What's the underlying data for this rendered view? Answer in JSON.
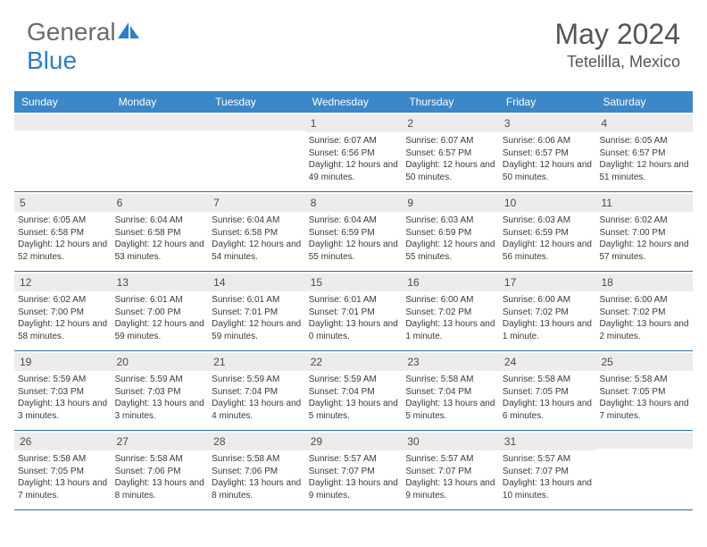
{
  "logo": {
    "text1": "General",
    "text2": "Blue"
  },
  "title": "May 2024",
  "location": "Tetelilla, Mexico",
  "colors": {
    "header_bg": "#3b87c8",
    "header_text": "#ffffff",
    "daynum_bg": "#ececec",
    "text": "#3a3a3a",
    "title_text": "#555555",
    "divider": "#2d6fa8"
  },
  "day_names": [
    "Sunday",
    "Monday",
    "Tuesday",
    "Wednesday",
    "Thursday",
    "Friday",
    "Saturday"
  ],
  "weeks": [
    [
      {
        "n": "",
        "empty": true
      },
      {
        "n": "",
        "empty": true
      },
      {
        "n": "",
        "empty": true
      },
      {
        "n": "1",
        "sunrise": "Sunrise: 6:07 AM",
        "sunset": "Sunset: 6:56 PM",
        "daylight": "Daylight: 12 hours and 49 minutes."
      },
      {
        "n": "2",
        "sunrise": "Sunrise: 6:07 AM",
        "sunset": "Sunset: 6:57 PM",
        "daylight": "Daylight: 12 hours and 50 minutes."
      },
      {
        "n": "3",
        "sunrise": "Sunrise: 6:06 AM",
        "sunset": "Sunset: 6:57 PM",
        "daylight": "Daylight: 12 hours and 50 minutes."
      },
      {
        "n": "4",
        "sunrise": "Sunrise: 6:05 AM",
        "sunset": "Sunset: 6:57 PM",
        "daylight": "Daylight: 12 hours and 51 minutes."
      }
    ],
    [
      {
        "n": "5",
        "sunrise": "Sunrise: 6:05 AM",
        "sunset": "Sunset: 6:58 PM",
        "daylight": "Daylight: 12 hours and 52 minutes."
      },
      {
        "n": "6",
        "sunrise": "Sunrise: 6:04 AM",
        "sunset": "Sunset: 6:58 PM",
        "daylight": "Daylight: 12 hours and 53 minutes."
      },
      {
        "n": "7",
        "sunrise": "Sunrise: 6:04 AM",
        "sunset": "Sunset: 6:58 PM",
        "daylight": "Daylight: 12 hours and 54 minutes."
      },
      {
        "n": "8",
        "sunrise": "Sunrise: 6:04 AM",
        "sunset": "Sunset: 6:59 PM",
        "daylight": "Daylight: 12 hours and 55 minutes."
      },
      {
        "n": "9",
        "sunrise": "Sunrise: 6:03 AM",
        "sunset": "Sunset: 6:59 PM",
        "daylight": "Daylight: 12 hours and 55 minutes."
      },
      {
        "n": "10",
        "sunrise": "Sunrise: 6:03 AM",
        "sunset": "Sunset: 6:59 PM",
        "daylight": "Daylight: 12 hours and 56 minutes."
      },
      {
        "n": "11",
        "sunrise": "Sunrise: 6:02 AM",
        "sunset": "Sunset: 7:00 PM",
        "daylight": "Daylight: 12 hours and 57 minutes."
      }
    ],
    [
      {
        "n": "12",
        "sunrise": "Sunrise: 6:02 AM",
        "sunset": "Sunset: 7:00 PM",
        "daylight": "Daylight: 12 hours and 58 minutes."
      },
      {
        "n": "13",
        "sunrise": "Sunrise: 6:01 AM",
        "sunset": "Sunset: 7:00 PM",
        "daylight": "Daylight: 12 hours and 59 minutes."
      },
      {
        "n": "14",
        "sunrise": "Sunrise: 6:01 AM",
        "sunset": "Sunset: 7:01 PM",
        "daylight": "Daylight: 12 hours and 59 minutes."
      },
      {
        "n": "15",
        "sunrise": "Sunrise: 6:01 AM",
        "sunset": "Sunset: 7:01 PM",
        "daylight": "Daylight: 13 hours and 0 minutes."
      },
      {
        "n": "16",
        "sunrise": "Sunrise: 6:00 AM",
        "sunset": "Sunset: 7:02 PM",
        "daylight": "Daylight: 13 hours and 1 minute."
      },
      {
        "n": "17",
        "sunrise": "Sunrise: 6:00 AM",
        "sunset": "Sunset: 7:02 PM",
        "daylight": "Daylight: 13 hours and 1 minute."
      },
      {
        "n": "18",
        "sunrise": "Sunrise: 6:00 AM",
        "sunset": "Sunset: 7:02 PM",
        "daylight": "Daylight: 13 hours and 2 minutes."
      }
    ],
    [
      {
        "n": "19",
        "sunrise": "Sunrise: 5:59 AM",
        "sunset": "Sunset: 7:03 PM",
        "daylight": "Daylight: 13 hours and 3 minutes."
      },
      {
        "n": "20",
        "sunrise": "Sunrise: 5:59 AM",
        "sunset": "Sunset: 7:03 PM",
        "daylight": "Daylight: 13 hours and 3 minutes."
      },
      {
        "n": "21",
        "sunrise": "Sunrise: 5:59 AM",
        "sunset": "Sunset: 7:04 PM",
        "daylight": "Daylight: 13 hours and 4 minutes."
      },
      {
        "n": "22",
        "sunrise": "Sunrise: 5:59 AM",
        "sunset": "Sunset: 7:04 PM",
        "daylight": "Daylight: 13 hours and 5 minutes."
      },
      {
        "n": "23",
        "sunrise": "Sunrise: 5:58 AM",
        "sunset": "Sunset: 7:04 PM",
        "daylight": "Daylight: 13 hours and 5 minutes."
      },
      {
        "n": "24",
        "sunrise": "Sunrise: 5:58 AM",
        "sunset": "Sunset: 7:05 PM",
        "daylight": "Daylight: 13 hours and 6 minutes."
      },
      {
        "n": "25",
        "sunrise": "Sunrise: 5:58 AM",
        "sunset": "Sunset: 7:05 PM",
        "daylight": "Daylight: 13 hours and 7 minutes."
      }
    ],
    [
      {
        "n": "26",
        "sunrise": "Sunrise: 5:58 AM",
        "sunset": "Sunset: 7:05 PM",
        "daylight": "Daylight: 13 hours and 7 minutes."
      },
      {
        "n": "27",
        "sunrise": "Sunrise: 5:58 AM",
        "sunset": "Sunset: 7:06 PM",
        "daylight": "Daylight: 13 hours and 8 minutes."
      },
      {
        "n": "28",
        "sunrise": "Sunrise: 5:58 AM",
        "sunset": "Sunset: 7:06 PM",
        "daylight": "Daylight: 13 hours and 8 minutes."
      },
      {
        "n": "29",
        "sunrise": "Sunrise: 5:57 AM",
        "sunset": "Sunset: 7:07 PM",
        "daylight": "Daylight: 13 hours and 9 minutes."
      },
      {
        "n": "30",
        "sunrise": "Sunrise: 5:57 AM",
        "sunset": "Sunset: 7:07 PM",
        "daylight": "Daylight: 13 hours and 9 minutes."
      },
      {
        "n": "31",
        "sunrise": "Sunrise: 5:57 AM",
        "sunset": "Sunset: 7:07 PM",
        "daylight": "Daylight: 13 hours and 10 minutes."
      },
      {
        "n": "",
        "empty": true
      }
    ]
  ]
}
